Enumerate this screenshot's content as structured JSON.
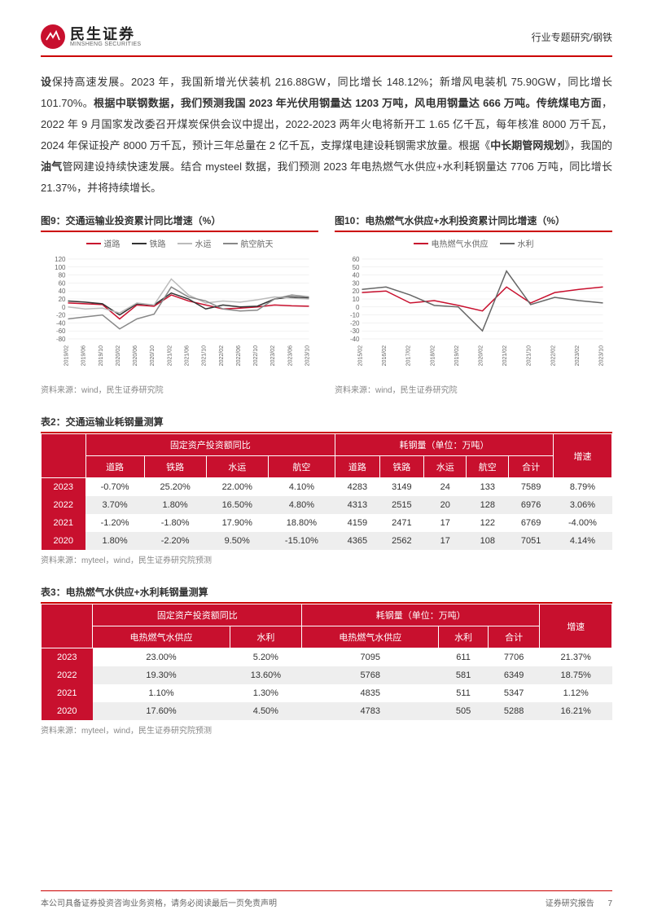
{
  "header": {
    "logo_cn": "民生证券",
    "logo_en": "MINSHENG SECURITIES",
    "right": "行业专题研究/钢铁"
  },
  "body_html": "<span class='bold'>设</span>保持高速发展。2023 年，我国新增光伏装机 216.88GW，同比增长 148.12%；新增风电装机 75.90GW，同比增长 101.70%。<span class='bold'>根据中联钢数据，我们预测我国 2023 年光伏用钢量达 1203 万吨，风电用钢量达 666 万吨。传统煤电方面</span>，2022 年 9 月国家发改委召开煤炭保供会议中提出，2022-2023 两年火电将新开工 1.65 亿千瓦，每年核准 8000 万千瓦，2024 年保证投产 8000 万千瓦，预计三年总量在 2 亿千瓦，支撑煤电建设耗钢需求放量。根据《<span class='bold'>中长期管网规划</span>》，我国的<span class='bold'>油气</span>管网建设持续快速发展。结合 mysteel 数据，我们预测 2023 年电热燃气水供应+水利耗钢量达 7706 万吨，同比增长 21.37%，并将持续增长。",
  "chart9": {
    "title": "图9：交通运输业投资累计同比增速（%）",
    "type": "line",
    "legend": [
      {
        "name": "道路",
        "color": "#c8102e"
      },
      {
        "name": "铁路",
        "color": "#333333"
      },
      {
        "name": "水运",
        "color": "#bbbbbb"
      },
      {
        "name": "航空航天",
        "color": "#888888"
      }
    ],
    "x_labels": [
      "2019/02",
      "2019/06",
      "2019/10",
      "2020/02",
      "2020/06",
      "2020/10",
      "2021/02",
      "2021/06",
      "2021/10",
      "2022/02",
      "2022/06",
      "2022/10",
      "2023/02",
      "2023/06",
      "2023/10"
    ],
    "ylim": [
      -80,
      120
    ],
    "ytick_step": 20,
    "grid_color": "#e5e5e5",
    "series": {
      "road": [
        10,
        8,
        6,
        -30,
        5,
        2,
        30,
        15,
        5,
        -5,
        -3,
        0,
        5,
        3,
        2
      ],
      "rail": [
        15,
        12,
        8,
        -20,
        8,
        5,
        35,
        20,
        -5,
        5,
        0,
        2,
        20,
        25,
        22
      ],
      "water": [
        0,
        -5,
        -3,
        -15,
        10,
        5,
        70,
        30,
        10,
        15,
        12,
        18,
        25,
        22,
        20
      ],
      "air": [
        -30,
        -25,
        -20,
        -55,
        -30,
        -18,
        50,
        25,
        15,
        -5,
        -10,
        -8,
        20,
        30,
        25
      ]
    },
    "source": "资料来源：wind，民生证券研究院"
  },
  "chart10": {
    "title": "图10：电热燃气水供应+水利投资累计同比增速（%）",
    "type": "line",
    "legend": [
      {
        "name": "电热燃气水供应",
        "color": "#c8102e"
      },
      {
        "name": "水利",
        "color": "#666666"
      }
    ],
    "x_labels": [
      "2015/02",
      "2016/02",
      "2017/02",
      "2018/02",
      "2019/02",
      "2020/02",
      "2021/02",
      "2021/10",
      "2022/02",
      "2023/02",
      "2023/10"
    ],
    "ylim": [
      -40,
      60
    ],
    "ytick_step": 10,
    "grid_color": "#e5e5e5",
    "series": {
      "power": [
        18,
        20,
        5,
        8,
        2,
        -5,
        25,
        5,
        18,
        22,
        25
      ],
      "water": [
        22,
        25,
        15,
        2,
        0,
        -30,
        45,
        3,
        12,
        8,
        5
      ]
    },
    "source": "资料来源：wind，民生证券研究院"
  },
  "table2": {
    "title": "表2：交通运输业耗钢量测算",
    "group_headers": [
      "",
      "固定资产投资额同比",
      "耗钢量（单位：万吨）",
      "增速"
    ],
    "group_spans": [
      1,
      4,
      5,
      1
    ],
    "sub_headers": [
      "",
      "道路",
      "铁路",
      "水运",
      "航空",
      "道路",
      "铁路",
      "水运",
      "航空",
      "合计",
      ""
    ],
    "rows": [
      [
        "2023",
        "-0.70%",
        "25.20%",
        "22.00%",
        "4.10%",
        "4283",
        "3149",
        "24",
        "133",
        "7589",
        "8.79%"
      ],
      [
        "2022",
        "3.70%",
        "1.80%",
        "16.50%",
        "4.80%",
        "4313",
        "2515",
        "20",
        "128",
        "6976",
        "3.06%"
      ],
      [
        "2021",
        "-1.20%",
        "-1.80%",
        "17.90%",
        "18.80%",
        "4159",
        "2471",
        "17",
        "122",
        "6769",
        "-4.00%"
      ],
      [
        "2020",
        "1.80%",
        "-2.20%",
        "9.50%",
        "-15.10%",
        "4365",
        "2562",
        "17",
        "108",
        "7051",
        "4.14%"
      ]
    ],
    "source": "资料来源：myteel，wind，民生证券研究院预测"
  },
  "table3": {
    "title": "表3：电热燃气水供应+水利耗钢量测算",
    "group_headers": [
      "",
      "固定资产投资额同比",
      "耗钢量（单位：万吨）",
      "增速"
    ],
    "group_spans": [
      1,
      2,
      3,
      1
    ],
    "sub_headers": [
      "",
      "电热燃气水供应",
      "水利",
      "电热燃气水供应",
      "水利",
      "合计",
      ""
    ],
    "rows": [
      [
        "2023",
        "23.00%",
        "5.20%",
        "7095",
        "611",
        "7706",
        "21.37%"
      ],
      [
        "2022",
        "19.30%",
        "13.60%",
        "5768",
        "581",
        "6349",
        "18.75%"
      ],
      [
        "2021",
        "1.10%",
        "1.30%",
        "4835",
        "511",
        "5347",
        "1.12%"
      ],
      [
        "2020",
        "17.60%",
        "4.50%",
        "4783",
        "505",
        "5288",
        "16.21%"
      ]
    ],
    "source": "资料来源：myteel，wind，民生证券研究院预测"
  },
  "footer": {
    "left": "本公司具备证券投资咨询业务资格，请务必阅读最后一页免责声明",
    "right_label": "证券研究报告",
    "page": "7"
  }
}
